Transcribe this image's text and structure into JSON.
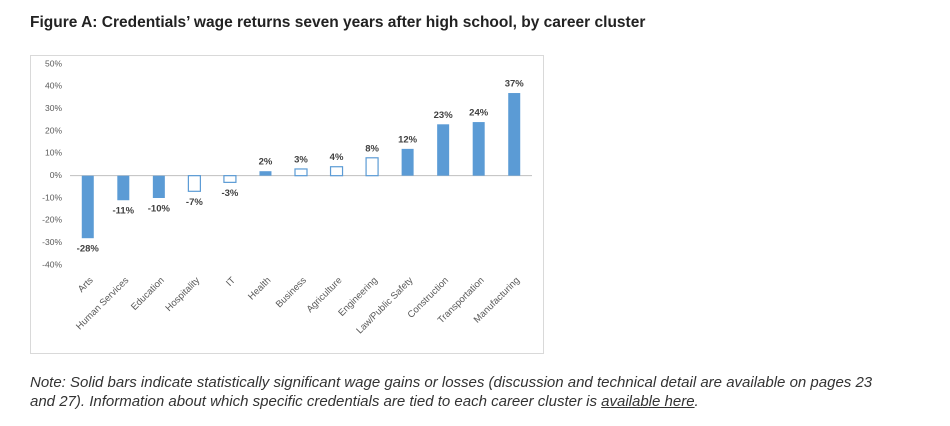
{
  "chart_data": {
    "type": "bar",
    "title": "Figure A: Credentials’ wage returns seven years after high school, by career cluster",
    "categories": [
      "Arts",
      "Human Services",
      "Education",
      "Hospitality",
      "IT",
      "Health",
      "Business",
      "Agriculture",
      "Engineering",
      "Law/Public Safety",
      "Construction",
      "Transportation",
      "Manufacturing"
    ],
    "values": [
      -28,
      -11,
      -10,
      -7,
      -3,
      2,
      3,
      4,
      8,
      12,
      23,
      24,
      37
    ],
    "value_labels": [
      "-28%",
      "-11%",
      "-10%",
      "-7%",
      "-3%",
      "2%",
      "3%",
      "4%",
      "8%",
      "12%",
      "23%",
      "24%",
      "37%"
    ],
    "filled": [
      true,
      true,
      true,
      false,
      false,
      true,
      false,
      false,
      false,
      true,
      true,
      true,
      true
    ],
    "color": "#5b9bd5",
    "ylim": [
      -40,
      50
    ],
    "yticks": [
      {
        "value": -40,
        "label": "-40%"
      },
      {
        "value": -30,
        "label": "-30%"
      },
      {
        "value": -20,
        "label": "-20%"
      },
      {
        "value": -10,
        "label": "-10%"
      },
      {
        "value": 0,
        "label": "0%"
      },
      {
        "value": 10,
        "label": "10%"
      },
      {
        "value": 20,
        "label": "20%"
      },
      {
        "value": 30,
        "label": "30%"
      },
      {
        "value": 40,
        "label": "40%"
      },
      {
        "value": 50,
        "label": "50%"
      }
    ],
    "grid": false
  },
  "note": {
    "text": "Note: Solid bars indicate statistically significant wage gains or losses (discussion and technical detail are available on pages 23 and 27). Information about which specific credentials are tied to each career cluster is ",
    "link": "available here",
    "end": "."
  }
}
